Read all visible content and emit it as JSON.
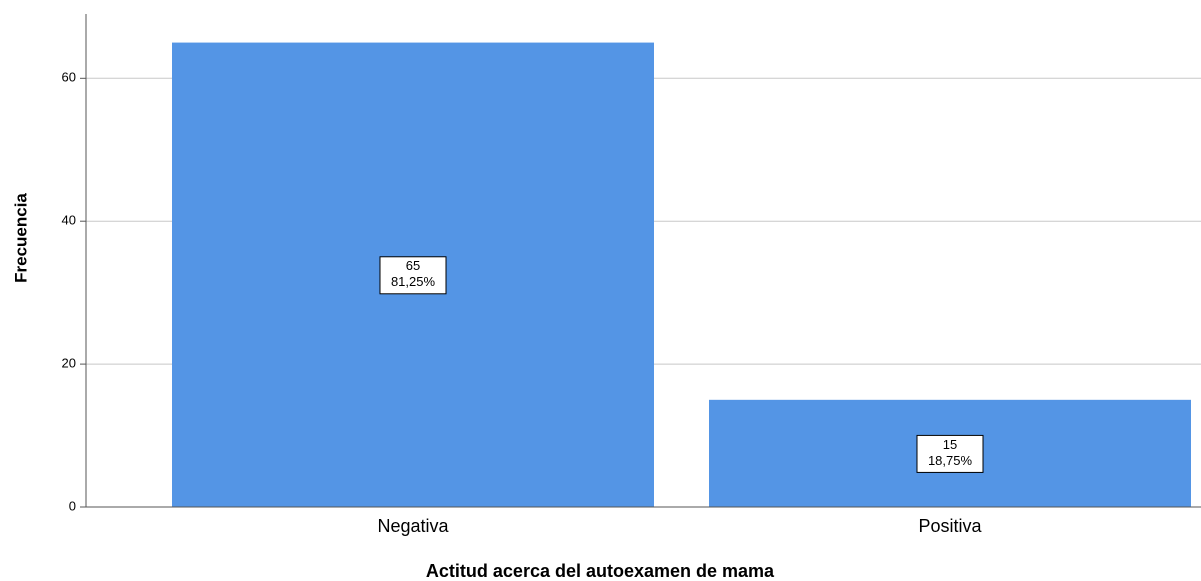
{
  "chart_data": {
    "type": "bar",
    "x_label": "Actitud acerca del autoexamen de mama",
    "y_label": "Frecuencia",
    "categories": [
      "Negativa",
      "Positiva"
    ],
    "values": [
      65,
      15
    ],
    "percent_labels": [
      "81,25%",
      "18,75%"
    ],
    "color": "#5495e5",
    "ylim": [
      0,
      69
    ],
    "yticks": [
      0,
      20,
      40,
      60
    ],
    "grid": true
  }
}
